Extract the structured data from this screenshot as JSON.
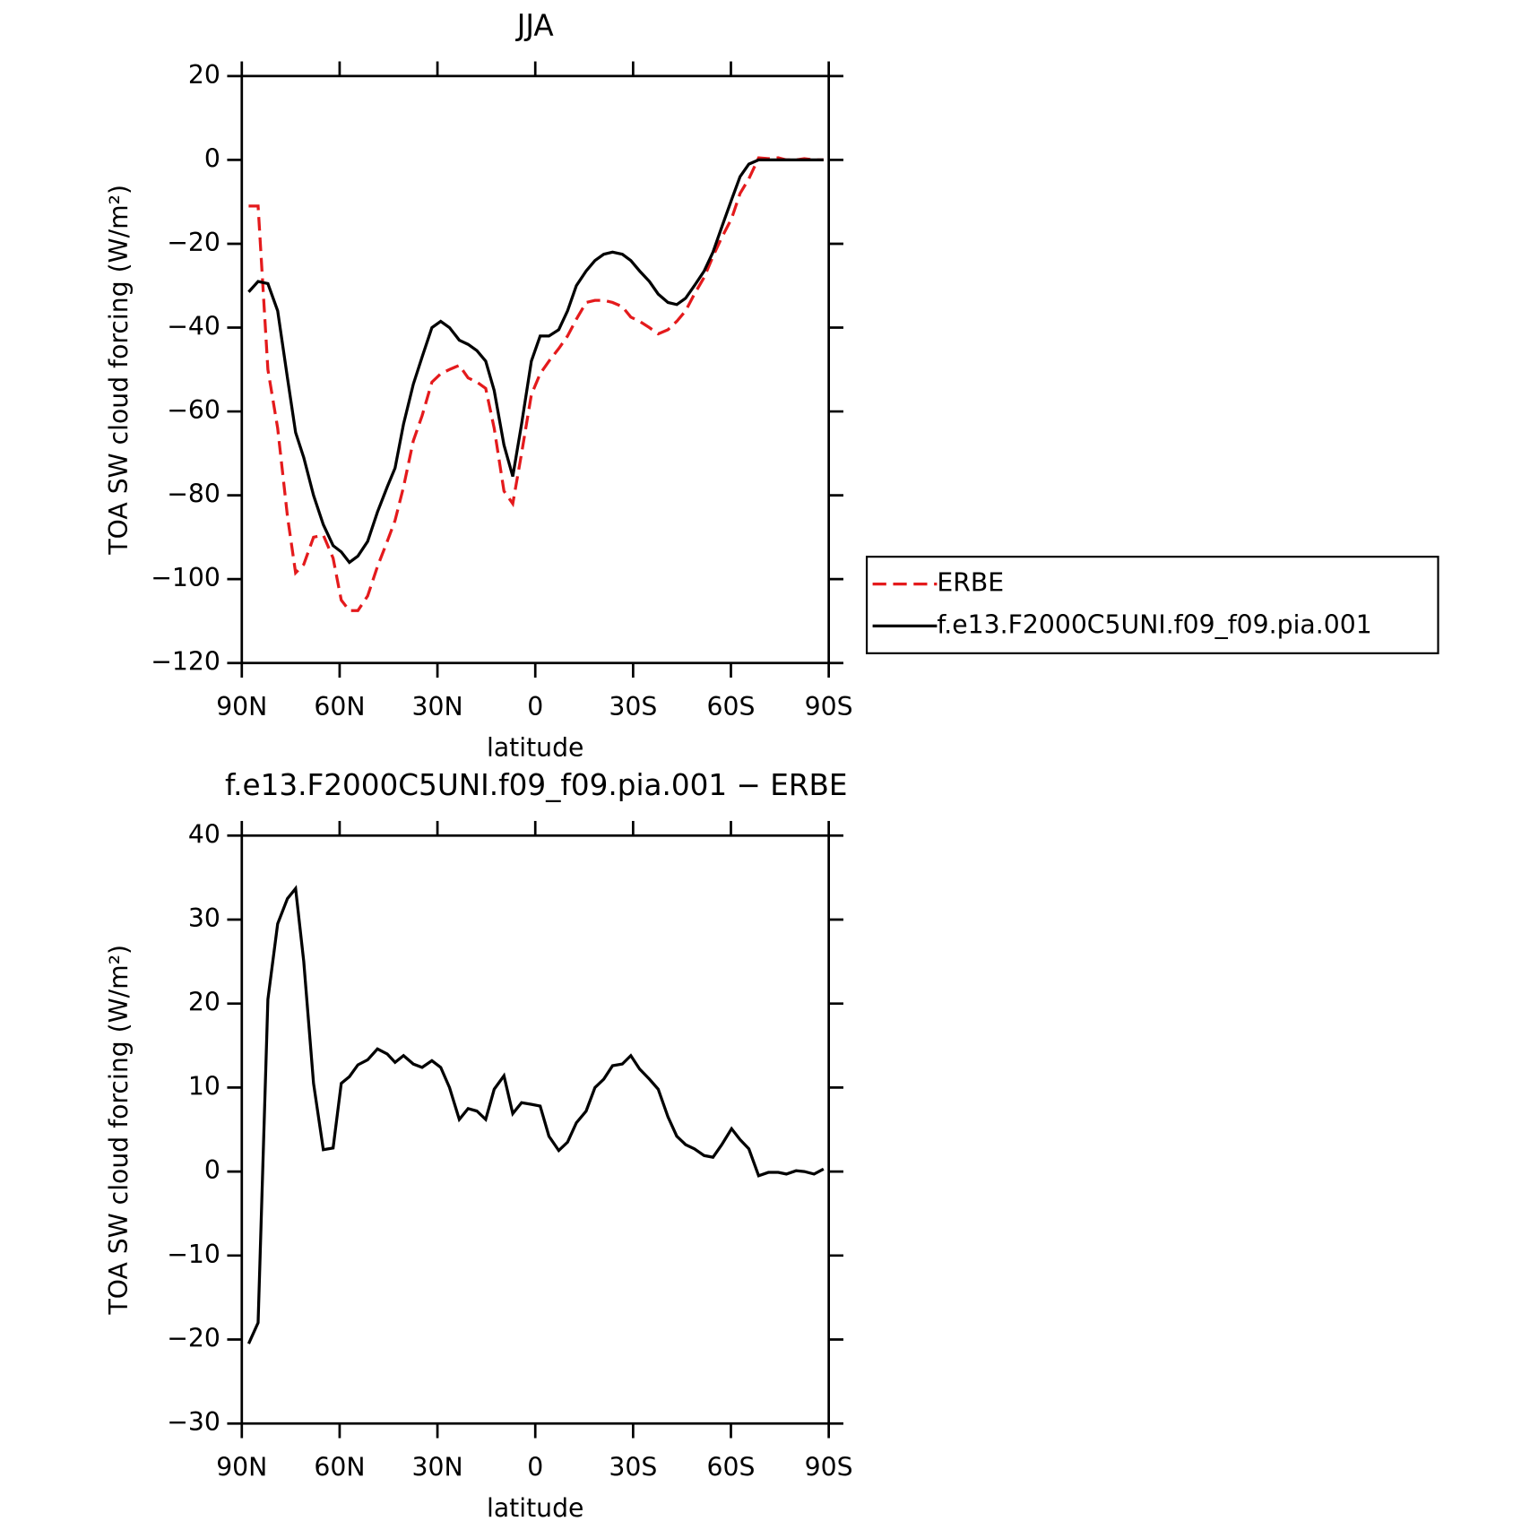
{
  "chart_data": [
    {
      "type": "line",
      "title": "JJA",
      "xlabel": "latitude",
      "ylabel": "TOA SW cloud forcing (W/m²)",
      "x": [
        87.9,
        85,
        82,
        79,
        76,
        73.5,
        71,
        68,
        65,
        62,
        59.5,
        57,
        54.4,
        51.4,
        48.4,
        45.4,
        43,
        40.4,
        37.4,
        34.7,
        31.7,
        29,
        26.3,
        23.3,
        20.6,
        17.9,
        15.2,
        12.6,
        9.6,
        6.9,
        4.2,
        1.2,
        -1.5,
        -4.2,
        -7.2,
        -9.9,
        -12.6,
        -15.6,
        -18.3,
        -21,
        -23.7,
        -26.7,
        -29.3,
        -32,
        -35,
        -37.7,
        -40.7,
        -43.4,
        -46.1,
        -48.8,
        -51.8,
        -54.5,
        -57.2,
        -60.2,
        -62.8,
        -65.5,
        -68.5,
        -71.5,
        -74.5,
        -77,
        -80,
        -82.5,
        -85.5,
        -88.4
      ],
      "series": [
        {
          "name": "ERBE",
          "color": "#e41a1c",
          "dashed": true,
          "values": [
            -11,
            -11,
            -50,
            -64,
            -85,
            -98.5,
            -96.5,
            -90,
            -89.5,
            -95,
            -105,
            -107.5,
            -107.5,
            -104,
            -97,
            -91,
            -86,
            -78,
            -67,
            -61,
            -53,
            -51,
            -50,
            -49,
            -52,
            -53,
            -54.5,
            -64,
            -79,
            -82,
            -70,
            -56,
            -51,
            -48,
            -45,
            -42,
            -38,
            -34,
            -33.5,
            -33.5,
            -34,
            -35,
            -37.5,
            -38.5,
            -40,
            -41.5,
            -40.5,
            -38.5,
            -36,
            -32,
            -28,
            -23,
            -18.5,
            -14,
            -8,
            -4.5,
            0.5,
            0.3,
            0.5,
            0,
            0,
            0.3,
            0,
            0
          ]
        },
        {
          "name": "f.e13.F2000C5UNI.f09_f09.pia.001",
          "color": "#000000",
          "dashed": false,
          "values": [
            -31.5,
            -29,
            -29.5,
            -36,
            -52,
            -65,
            -71,
            -80,
            -87,
            -92,
            -93.5,
            -96,
            -94.5,
            -91,
            -84,
            -78,
            -73.5,
            -63,
            -53.5,
            -47,
            -40,
            -38.5,
            -40,
            -43,
            -44,
            -45.5,
            -48,
            -55,
            -68,
            -75.5,
            -63,
            -48,
            -42,
            -42,
            -40.5,
            -36,
            -30,
            -26.5,
            -24,
            -22.5,
            -22,
            -22.5,
            -24,
            -26.5,
            -29,
            -32,
            -34,
            -34.5,
            -33,
            -30,
            -26.5,
            -22,
            -16,
            -9.5,
            -4,
            -1,
            0,
            0,
            0,
            0,
            0,
            0,
            0,
            0
          ]
        }
      ],
      "xlim": [
        90,
        -90
      ],
      "xticks": [
        {
          "value": 90,
          "label": "90N"
        },
        {
          "value": 60,
          "label": "60N"
        },
        {
          "value": 30,
          "label": "30N"
        },
        0,
        {
          "value": -30,
          "label": "30S"
        },
        {
          "value": -60,
          "label": "60S"
        },
        {
          "value": -90,
          "label": "90S"
        }
      ],
      "ylim": [
        -120,
        20
      ],
      "yticks": [
        {
          "value": 20,
          "label": "20"
        },
        0,
        {
          "value": -20,
          "label": "−20"
        },
        {
          "value": -40,
          "label": "−40"
        },
        {
          "value": -60,
          "label": "−60"
        },
        {
          "value": -80,
          "label": "−80"
        },
        {
          "value": -100,
          "label": "−100"
        },
        {
          "value": -120,
          "label": "−120"
        }
      ],
      "legend": "right"
    },
    {
      "type": "line",
      "title": "f.e13.F2000C5UNI.f09_f09.pia.001 − ERBE",
      "xlabel": "latitude",
      "ylabel": "TOA SW cloud forcing (W/m²)",
      "x": [
        87.9,
        85,
        82,
        79,
        76,
        73.5,
        71,
        68,
        65,
        62,
        59.5,
        57,
        54.4,
        51.4,
        48.4,
        45.4,
        43,
        40.4,
        37.4,
        34.7,
        31.7,
        29,
        26.3,
        23.3,
        20.6,
        17.9,
        15.2,
        12.6,
        9.6,
        6.9,
        4.2,
        1.2,
        -1.5,
        -4.2,
        -7.2,
        -9.9,
        -12.6,
        -15.6,
        -18.3,
        -21,
        -23.7,
        -26.7,
        -29.3,
        -32,
        -35,
        -37.7,
        -40.7,
        -43.4,
        -46.1,
        -48.8,
        -51.8,
        -54.5,
        -57.2,
        -60.2,
        -62.8,
        -65.5,
        -68.5,
        -71.5,
        -74.5,
        -77,
        -80,
        -82.5,
        -85.5,
        -88.4
      ],
      "series": [
        {
          "color": "#000000",
          "dashed": false,
          "values": [
            -20.5,
            -18,
            20.5,
            29.5,
            32.5,
            33.7,
            25,
            10.5,
            2.6,
            2.8,
            10.5,
            11.3,
            12.7,
            13.3,
            14.6,
            14,
            13,
            13.8,
            12.8,
            12.4,
            13.2,
            12.4,
            10,
            6.2,
            7.5,
            7.2,
            6.2,
            9.8,
            11.4,
            6.9,
            8.2,
            8,
            7.8,
            4.2,
            2.5,
            3.5,
            5.8,
            7.2,
            10,
            11,
            12.6,
            12.8,
            13.8,
            12.2,
            11,
            9.8,
            6.5,
            4.2,
            3.2,
            2.7,
            1.9,
            1.7,
            3.2,
            5.1,
            3.8,
            2.7,
            -0.5,
            -0.1,
            -0.1,
            -0.3,
            0.1,
            0,
            -0.3,
            0.3
          ]
        }
      ],
      "xlim": [
        90,
        -90
      ],
      "xticks": [
        {
          "value": 90,
          "label": "90N"
        },
        {
          "value": 60,
          "label": "60N"
        },
        {
          "value": 30,
          "label": "30N"
        },
        0,
        {
          "value": -30,
          "label": "30S"
        },
        {
          "value": -60,
          "label": "60S"
        },
        {
          "value": -90,
          "label": "90S"
        }
      ],
      "ylim": [
        -30,
        40
      ],
      "yticks": [
        40,
        30,
        20,
        10,
        0,
        {
          "value": -10,
          "label": "−10"
        },
        {
          "value": -20,
          "label": "−20"
        },
        {
          "value": -30,
          "label": "−30"
        }
      ]
    }
  ]
}
